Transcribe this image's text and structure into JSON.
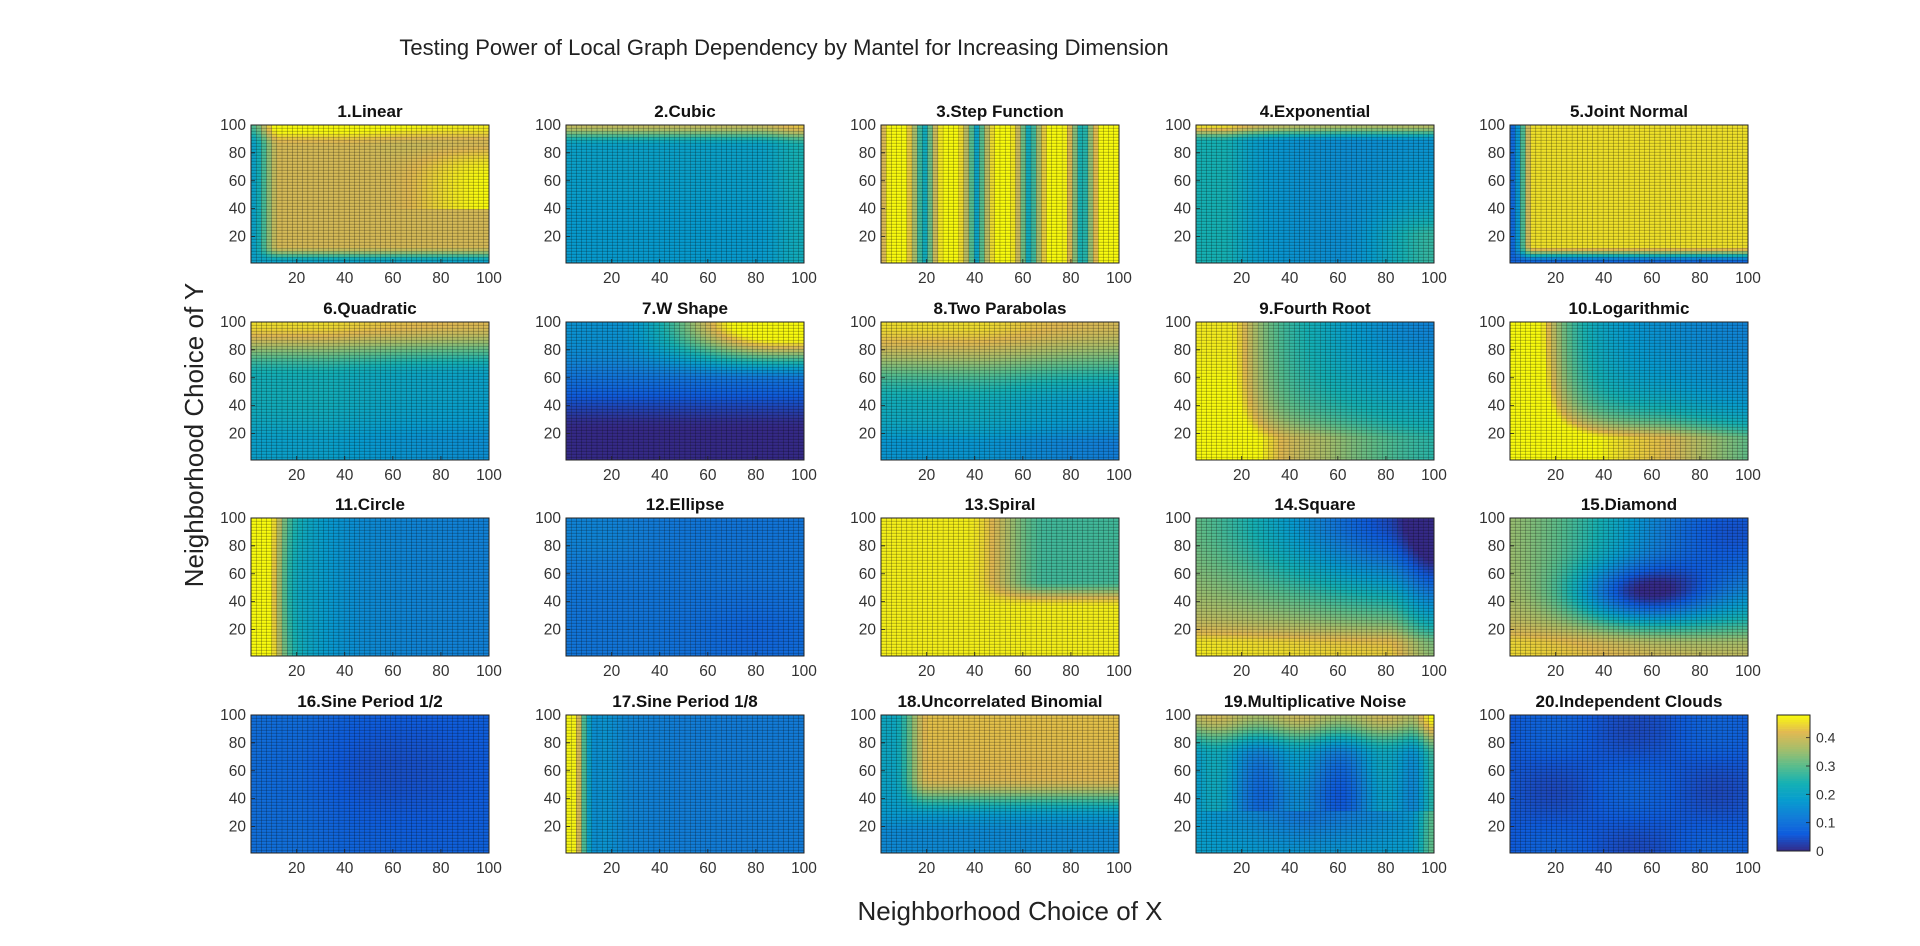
{
  "chart_data": {
    "type": "heatmap",
    "title": "Testing Power of Local Graph Dependency by Mantel for Increasing Dimension",
    "xlabel": "Neighborhood Choice of X",
    "ylabel": "Neighborhood Choice of Y",
    "xlim": [
      1,
      100
    ],
    "ylim": [
      1,
      100
    ],
    "xticks": [
      "20",
      "40",
      "60",
      "80",
      "100"
    ],
    "yticks": [
      "20",
      "40",
      "60",
      "80",
      "100"
    ],
    "colorbar": {
      "min": 0,
      "max": 0.48,
      "ticks": [
        "0",
        "0.1",
        "0.2",
        "0.3",
        "0.4"
      ],
      "colormap": "parula"
    },
    "panels": [
      {
        "title": "1.Linear"
      },
      {
        "title": "2.Cubic"
      },
      {
        "title": "3.Step Function"
      },
      {
        "title": "4.Exponential"
      },
      {
        "title": "5.Joint Normal"
      },
      {
        "title": "6.Quadratic"
      },
      {
        "title": "7.W Shape"
      },
      {
        "title": "8.Two Parabolas"
      },
      {
        "title": "9.Fourth Root"
      },
      {
        "title": "10.Logarithmic"
      },
      {
        "title": "11.Circle"
      },
      {
        "title": "12.Ellipse"
      },
      {
        "title": "13.Spiral"
      },
      {
        "title": "14.Square"
      },
      {
        "title": "15.Diamond"
      },
      {
        "title": "16.Sine Period 1/2"
      },
      {
        "title": "17.Sine Period 1/8"
      },
      {
        "title": "18.Uncorrelated Binomial"
      },
      {
        "title": "19.Multiplicative Noise"
      },
      {
        "title": "20.Independent Clouds"
      }
    ]
  }
}
